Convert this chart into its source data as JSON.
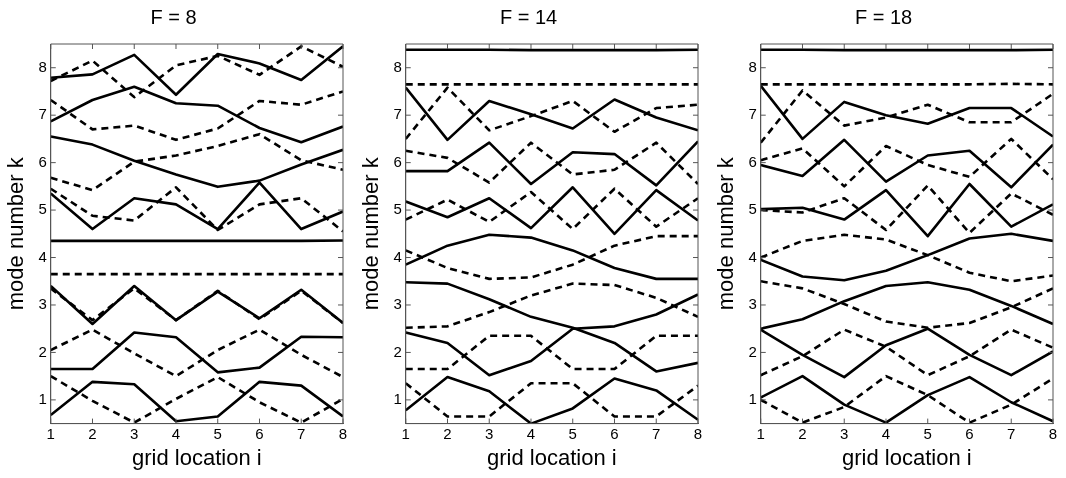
{
  "chart_data": [
    {
      "type": "line",
      "title": "F = 8",
      "xlabel": "grid location i",
      "ylabel": "mode number k",
      "x": [
        1,
        2,
        3,
        4,
        5,
        6,
        7,
        8
      ],
      "xlim": [
        1,
        8
      ],
      "xticks": [
        1,
        2,
        3,
        4,
        5,
        6,
        7,
        8
      ],
      "ylim": [
        0.5,
        8.5
      ],
      "yticks": [
        1,
        2,
        3,
        4,
        5,
        6,
        7,
        8
      ],
      "marker": "none",
      "series": [
        {
          "color": "#000000",
          "line_style": "solid",
          "values": [
            7.79,
            7.86,
            8.27,
            7.43,
            8.29,
            8.09,
            7.74,
            8.45
          ]
        },
        {
          "color": "#000000",
          "line_style": "solid",
          "values": [
            6.87,
            7.32,
            7.6,
            7.25,
            7.2,
            6.73,
            6.43,
            6.76
          ]
        },
        {
          "color": "#000000",
          "line_style": "solid",
          "values": [
            6.55,
            6.38,
            6.04,
            5.75,
            5.49,
            5.62,
            5.96,
            6.27
          ]
        },
        {
          "color": "#000000",
          "line_style": "solid",
          "values": [
            5.35,
            4.6,
            5.25,
            5.12,
            4.6,
            5.58,
            4.6,
            4.97
          ]
        },
        {
          "color": "#000000",
          "line_style": "solid",
          "values": [
            4.35,
            4.35,
            4.35,
            4.35,
            4.35,
            4.35,
            4.35,
            4.36
          ]
        },
        {
          "color": "#000000",
          "line_style": "solid",
          "values": [
            3.4,
            2.6,
            3.4,
            2.68,
            3.28,
            2.72,
            3.32,
            2.62
          ]
        },
        {
          "color": "#000000",
          "line_style": "solid",
          "values": [
            1.65,
            1.65,
            2.42,
            2.32,
            1.58,
            1.68,
            2.33,
            2.32
          ]
        },
        {
          "color": "#000000",
          "line_style": "solid",
          "values": [
            0.68,
            1.38,
            1.33,
            0.55,
            0.65,
            1.38,
            1.3,
            0.65
          ]
        },
        {
          "color": "#000000",
          "line_style": "dashed",
          "values": [
            7.72,
            8.15,
            7.38,
            8.05,
            8.25,
            7.85,
            8.45,
            8.02
          ]
        },
        {
          "color": "#000000",
          "line_style": "dashed",
          "values": [
            7.32,
            6.7,
            6.78,
            6.48,
            6.72,
            7.3,
            7.22,
            7.5
          ]
        },
        {
          "color": "#000000",
          "line_style": "dashed",
          "values": [
            5.68,
            5.42,
            6.02,
            6.15,
            6.35,
            6.6,
            6.05,
            5.85
          ]
        },
        {
          "color": "#000000",
          "line_style": "dashed",
          "values": [
            5.45,
            4.88,
            4.78,
            5.48,
            4.58,
            5.12,
            5.25,
            4.55
          ]
        },
        {
          "color": "#000000",
          "line_style": "dashed",
          "values": [
            3.65,
            3.65,
            3.65,
            3.65,
            3.65,
            3.65,
            3.65,
            3.65
          ]
        },
        {
          "color": "#000000",
          "line_style": "dashed",
          "values": [
            3.35,
            2.68,
            3.35,
            2.68,
            3.3,
            2.7,
            3.3,
            2.62
          ]
        },
        {
          "color": "#000000",
          "line_style": "dashed",
          "values": [
            2.05,
            2.48,
            1.98,
            1.5,
            2.05,
            2.48,
            1.95,
            1.48
          ]
        },
        {
          "color": "#000000",
          "line_style": "dashed",
          "values": [
            1.5,
            0.98,
            0.52,
            1.02,
            1.48,
            0.95,
            0.52,
            1.02
          ]
        }
      ]
    },
    {
      "type": "line",
      "title": "F = 14",
      "xlabel": "grid location i",
      "ylabel": "mode number k",
      "x": [
        1,
        2,
        3,
        4,
        5,
        6,
        7,
        8
      ],
      "xlim": [
        1,
        8
      ],
      "xticks": [
        1,
        2,
        3,
        4,
        5,
        6,
        7,
        8
      ],
      "ylim": [
        0.5,
        8.5
      ],
      "yticks": [
        1,
        2,
        3,
        4,
        5,
        6,
        7,
        8
      ],
      "marker": "none",
      "series": [
        {
          "color": "#000000",
          "line_style": "solid",
          "values": [
            8.38,
            8.38,
            8.38,
            8.37,
            8.37,
            8.37,
            8.37,
            8.38
          ]
        },
        {
          "color": "#000000",
          "line_style": "solid",
          "values": [
            7.58,
            6.48,
            7.3,
            7.02,
            6.72,
            7.33,
            6.95,
            6.68
          ]
        },
        {
          "color": "#000000",
          "line_style": "solid",
          "values": [
            5.82,
            5.82,
            6.42,
            5.55,
            6.22,
            6.18,
            5.52,
            6.45
          ]
        },
        {
          "color": "#000000",
          "line_style": "solid",
          "values": [
            5.18,
            4.85,
            5.25,
            4.62,
            5.48,
            4.5,
            5.42,
            4.78
          ]
        },
        {
          "color": "#000000",
          "line_style": "solid",
          "values": [
            3.85,
            4.25,
            4.48,
            4.42,
            4.15,
            3.78,
            3.55,
            3.55
          ]
        },
        {
          "color": "#000000",
          "line_style": "solid",
          "values": [
            3.48,
            3.45,
            3.12,
            2.75,
            2.52,
            2.2,
            1.6,
            1.78
          ]
        },
        {
          "color": "#000000",
          "line_style": "solid",
          "values": [
            2.42,
            2.2,
            1.52,
            1.82,
            2.5,
            2.55,
            2.8,
            3.22
          ]
        },
        {
          "color": "#000000",
          "line_style": "solid",
          "values": [
            0.78,
            1.48,
            1.18,
            0.5,
            0.82,
            1.45,
            1.2,
            0.58
          ]
        },
        {
          "color": "#000000",
          "line_style": "dashed",
          "values": [
            7.65,
            7.65,
            7.65,
            7.65,
            7.65,
            7.65,
            7.65,
            7.65
          ]
        },
        {
          "color": "#000000",
          "line_style": "dashed",
          "values": [
            6.5,
            7.58,
            6.68,
            6.98,
            7.3,
            6.65,
            7.15,
            7.22
          ]
        },
        {
          "color": "#000000",
          "line_style": "dashed",
          "values": [
            6.25,
            6.1,
            5.58,
            6.42,
            5.75,
            5.85,
            6.42,
            5.55
          ]
        },
        {
          "color": "#000000",
          "line_style": "dashed",
          "values": [
            4.8,
            5.22,
            4.75,
            5.38,
            4.6,
            5.45,
            4.65,
            5.25
          ]
        },
        {
          "color": "#000000",
          "line_style": "dashed",
          "values": [
            4.15,
            3.78,
            3.55,
            3.58,
            3.85,
            4.25,
            4.45,
            4.45
          ]
        },
        {
          "color": "#000000",
          "line_style": "dashed",
          "values": [
            2.52,
            2.55,
            2.85,
            3.2,
            3.45,
            3.42,
            3.15,
            2.75
          ]
        },
        {
          "color": "#000000",
          "line_style": "dashed",
          "values": [
            1.65,
            1.65,
            2.35,
            2.35,
            1.65,
            1.65,
            2.35,
            2.35
          ]
        },
        {
          "color": "#000000",
          "line_style": "dashed",
          "values": [
            1.35,
            0.65,
            0.65,
            1.35,
            1.35,
            0.65,
            0.65,
            1.3
          ]
        }
      ]
    },
    {
      "type": "line",
      "title": "F = 18",
      "xlabel": "grid location i",
      "ylabel": "mode number k",
      "x": [
        1,
        2,
        3,
        4,
        5,
        6,
        7,
        8
      ],
      "xlim": [
        1,
        8
      ],
      "xticks": [
        1,
        2,
        3,
        4,
        5,
        6,
        7,
        8
      ],
      "ylim": [
        0.5,
        8.5
      ],
      "yticks": [
        1,
        2,
        3,
        4,
        5,
        6,
        7,
        8
      ],
      "marker": "none",
      "series": [
        {
          "color": "#000000",
          "line_style": "solid",
          "values": [
            8.38,
            8.38,
            8.37,
            8.37,
            8.37,
            8.37,
            8.37,
            8.38
          ]
        },
        {
          "color": "#000000",
          "line_style": "solid",
          "values": [
            7.62,
            6.5,
            7.28,
            7.0,
            6.82,
            7.15,
            7.15,
            6.55
          ]
        },
        {
          "color": "#000000",
          "line_style": "solid",
          "values": [
            5.95,
            5.72,
            6.48,
            5.6,
            6.15,
            6.25,
            5.48,
            6.38
          ]
        },
        {
          "color": "#000000",
          "line_style": "solid",
          "values": [
            5.02,
            5.05,
            4.8,
            5.42,
            4.45,
            5.55,
            4.65,
            5.12
          ]
        },
        {
          "color": "#000000",
          "line_style": "solid",
          "values": [
            3.95,
            3.6,
            3.52,
            3.72,
            4.05,
            4.4,
            4.5,
            4.35
          ]
        },
        {
          "color": "#000000",
          "line_style": "solid",
          "values": [
            2.5,
            2.7,
            3.08,
            3.4,
            3.48,
            3.32,
            2.98,
            2.6
          ]
        },
        {
          "color": "#000000",
          "line_style": "solid",
          "values": [
            2.48,
            1.95,
            1.48,
            2.15,
            2.5,
            1.95,
            1.52,
            2.02
          ]
        },
        {
          "color": "#000000",
          "line_style": "solid",
          "values": [
            1.05,
            1.5,
            0.9,
            0.52,
            1.1,
            1.48,
            0.95,
            0.55
          ]
        },
        {
          "color": "#000000",
          "line_style": "dashed",
          "values": [
            7.65,
            7.65,
            7.65,
            7.65,
            7.65,
            7.65,
            7.66,
            7.65
          ]
        },
        {
          "color": "#000000",
          "line_style": "dashed",
          "values": [
            6.42,
            7.52,
            6.78,
            6.95,
            7.22,
            6.85,
            6.85,
            7.45
          ]
        },
        {
          "color": "#000000",
          "line_style": "dashed",
          "values": [
            6.05,
            6.3,
            5.5,
            6.35,
            5.95,
            5.7,
            6.5,
            5.65
          ]
        },
        {
          "color": "#000000",
          "line_style": "dashed",
          "values": [
            5.0,
            4.95,
            5.25,
            4.58,
            5.52,
            4.52,
            5.35,
            4.9
          ]
        },
        {
          "color": "#000000",
          "line_style": "dashed",
          "values": [
            4.0,
            4.35,
            4.48,
            4.38,
            4.05,
            3.68,
            3.5,
            3.62
          ]
        },
        {
          "color": "#000000",
          "line_style": "dashed",
          "values": [
            3.5,
            3.35,
            3.02,
            2.65,
            2.52,
            2.62,
            2.95,
            3.35
          ]
        },
        {
          "color": "#000000",
          "line_style": "dashed",
          "values": [
            1.52,
            1.92,
            2.48,
            2.12,
            1.52,
            1.92,
            2.48,
            2.1
          ]
        },
        {
          "color": "#000000",
          "line_style": "dashed",
          "values": [
            1.0,
            0.52,
            0.85,
            1.5,
            1.1,
            0.52,
            0.9,
            1.45
          ]
        }
      ]
    }
  ]
}
